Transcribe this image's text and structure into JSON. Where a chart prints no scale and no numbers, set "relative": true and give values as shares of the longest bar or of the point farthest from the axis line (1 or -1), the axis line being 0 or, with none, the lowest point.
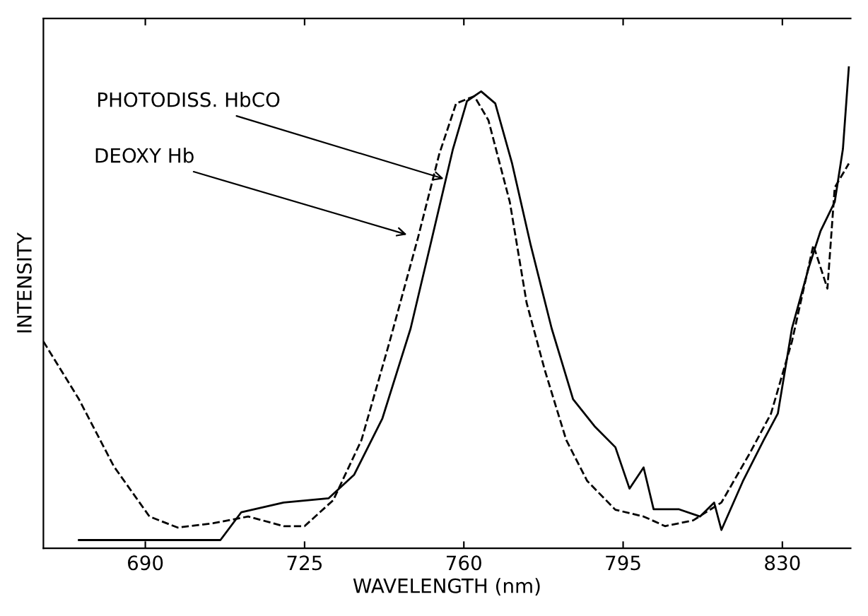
{
  "chart_data": {
    "type": "line",
    "xlabel": "WAVELENGTH (nm)",
    "ylabel": "INTENSITY",
    "relative": true,
    "xlim": [
      667.6,
      845
    ],
    "xticks": [
      690,
      725,
      760,
      795,
      830
    ],
    "tick_labels": "x",
    "grid": false,
    "legend": false,
    "series": [
      {
        "color": "#000000",
        "line_style": "solid",
        "x": [
          675.4,
          706.5,
          711.1,
          720.4,
          730.3,
          735.9,
          742.1,
          748.3,
          753,
          757.6,
          760.7,
          763.8,
          766.9,
          770.6,
          774.7,
          779.3,
          784,
          788.7,
          793.3,
          796.4,
          799.5,
          801.7,
          807.3,
          811.9,
          815,
          816.6,
          821.3,
          825.9,
          829,
          832.1,
          835.9,
          838.4,
          841.5,
          843.3,
          844.6
        ],
        "values": [
          0.017,
          0.017,
          0.075,
          0.095,
          0.104,
          0.153,
          0.27,
          0.457,
          0.645,
          0.83,
          0.93,
          0.95,
          0.925,
          0.8,
          0.63,
          0.457,
          0.31,
          0.254,
          0.21,
          0.124,
          0.168,
          0.081,
          0.081,
          0.066,
          0.095,
          0.038,
          0.139,
          0.225,
          0.28,
          0.457,
          0.587,
          0.66,
          0.72,
          0.83,
          1.0
        ]
      },
      {
        "color": "#000000",
        "line_style": "dashed",
        "x": [
          667.6,
          675.4,
          683.1,
          690.9,
          697.1,
          704.9,
          712.6,
          720.4,
          725,
          731.3,
          737.5,
          743.7,
          749.9,
          754.6,
          758.3,
          762.3,
          765.4,
          770.1,
          773.8,
          777.8,
          782.5,
          787.1,
          793.3,
          799.5,
          804.2,
          810.4,
          816.6,
          822.8,
          827.5,
          832.1,
          836.8,
          839.9,
          841.5,
          844.6
        ],
        "values": [
          0.43,
          0.31,
          0.17,
          0.066,
          0.043,
          0.052,
          0.066,
          0.046,
          0.046,
          0.1,
          0.225,
          0.43,
          0.645,
          0.82,
          0.925,
          0.94,
          0.89,
          0.72,
          0.51,
          0.37,
          0.225,
          0.14,
          0.08,
          0.066,
          0.046,
          0.058,
          0.095,
          0.197,
          0.28,
          0.43,
          0.63,
          0.54,
          0.75,
          0.8
        ]
      }
    ],
    "annotations": [
      {
        "text": "PHOTODISS. HbCO",
        "x": 756.4,
        "y": 0.766
      },
      {
        "text": "DEOXY Hb",
        "x": 748.3,
        "y": 0.65
      }
    ]
  }
}
